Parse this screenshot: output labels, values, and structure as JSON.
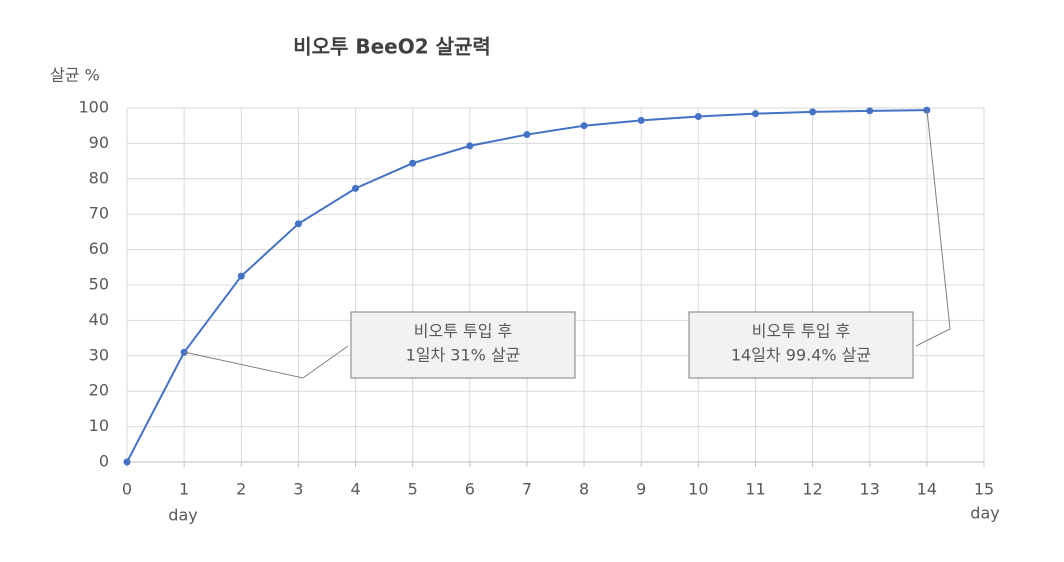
{
  "chart_data": {
    "type": "line",
    "title": "비오투 BeeO2 살균력",
    "ylabel": "살균 %",
    "xlabels": [
      "day",
      "day"
    ],
    "x": [
      0,
      1,
      2,
      3,
      4,
      5,
      6,
      7,
      8,
      9,
      10,
      11,
      12,
      13,
      14
    ],
    "series": [
      {
        "name": "살균력",
        "color": "#4472c4",
        "values": [
          0,
          31,
          52.5,
          67.3,
          77.3,
          84.4,
          89.3,
          92.5,
          95,
          96.5,
          97.6,
          98.4,
          98.9,
          99.2,
          99.4
        ]
      }
    ],
    "xlim": [
      0,
      15
    ],
    "xticks": [
      0,
      1,
      2,
      3,
      4,
      5,
      6,
      7,
      8,
      9,
      10,
      11,
      12,
      13,
      14,
      15
    ],
    "ylim": [
      0,
      100
    ],
    "yticks": [
      0,
      10,
      20,
      30,
      40,
      50,
      60,
      70,
      80,
      90,
      100
    ],
    "grid": true,
    "annotations": [
      {
        "lines": [
          "비오투 투입 후",
          "1일차 31% 살균"
        ]
      },
      {
        "lines": [
          "비오투 투입 후",
          "14일차 99.4% 살균"
        ]
      }
    ]
  }
}
